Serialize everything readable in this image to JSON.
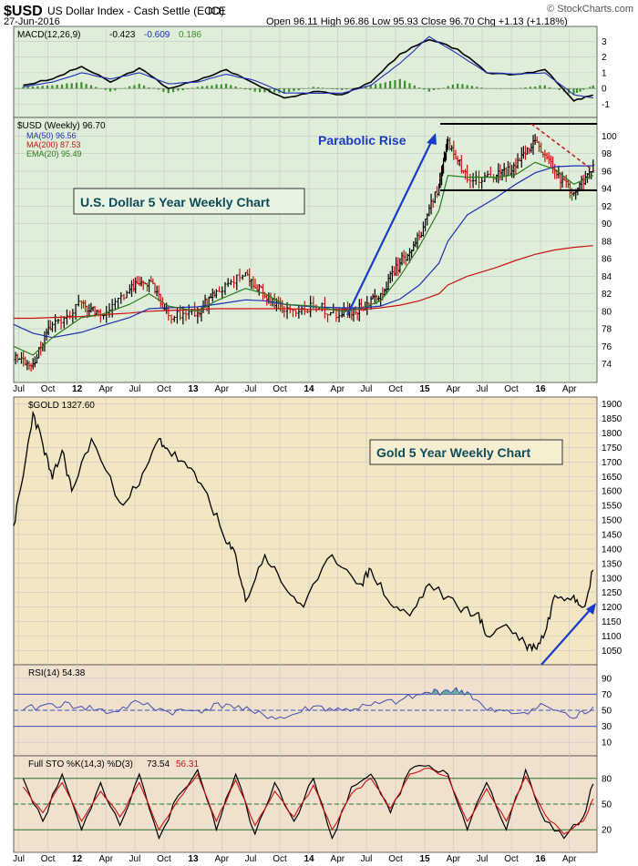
{
  "header": {
    "symbol": "$USD",
    "description": "US Dollar Index - Cash Settle (EOD)",
    "exchange": "ICE",
    "date": "27-Jun-2016",
    "quote": "Open 96.11  High 96.86  Low 95.93  Close 96.70  Chg +1.13 (+1.18%)",
    "watermark": "© StockCharts.com"
  },
  "colors": {
    "usd_bg": "#dfeed9",
    "gold_bg": "#f3e6c2",
    "osc_bg": "#f0e1cf",
    "macd_line": "#000000",
    "signal_line": "#1b2fb5",
    "histogram": "#3b8f2f",
    "ma50": "#1b2fb5",
    "ma200": "#cc1010",
    "ema20": "#2d7a1f",
    "bull_bar": "#000000",
    "bear_bar": "#cc1010",
    "annotation": "#1a3ac8",
    "rsi_line": "#4450b0",
    "rsi_fill": "#5aa59a",
    "sto_k": "#000000",
    "sto_d": "#cc1010"
  },
  "time_axis": {
    "labels": [
      "Jul",
      "Oct",
      "12",
      "Apr",
      "Jul",
      "Oct",
      "13",
      "Apr",
      "Jul",
      "Oct",
      "14",
      "Apr",
      "Jul",
      "Oct",
      "15",
      "Apr",
      "Jul",
      "Oct",
      "16",
      "Apr"
    ]
  },
  "chart_data": [
    {
      "type": "line",
      "panel": "macd",
      "legend": [
        "MACD(12,26,9)",
        "-0.423",
        "-0.609",
        "0.186"
      ],
      "x": [
        "2011-07",
        "2011-10",
        "2012-01",
        "2012-04",
        "2012-07",
        "2012-10",
        "2013-01",
        "2013-04",
        "2013-07",
        "2013-10",
        "2014-01",
        "2014-04",
        "2014-07",
        "2014-10",
        "2015-01",
        "2015-04",
        "2015-07",
        "2015-10",
        "2016-01",
        "2016-04",
        "2016-06"
      ],
      "series": [
        {
          "name": "MACD",
          "values": [
            0.2,
            0.6,
            1.4,
            0.4,
            1.3,
            0.0,
            0.5,
            1.2,
            0.3,
            -0.6,
            -0.2,
            -0.4,
            0.4,
            2.2,
            3.1,
            2.5,
            1.0,
            0.9,
            1.2,
            -0.8,
            -0.42
          ]
        },
        {
          "name": "Signal",
          "values": [
            0.1,
            0.4,
            1.0,
            0.6,
            1.0,
            0.3,
            0.4,
            0.9,
            0.5,
            -0.3,
            -0.3,
            -0.3,
            0.2,
            1.6,
            3.3,
            2.2,
            1.0,
            0.9,
            1.0,
            -0.4,
            -0.61
          ]
        }
      ],
      "ticks": [
        3,
        2,
        1,
        0,
        -1
      ],
      "ylim": [
        -1.5,
        3.6
      ]
    },
    {
      "type": "bar",
      "panel": "usd",
      "legend": [
        "$USD (Weekly) 96.70",
        "MA(50) 96.56",
        "MA(200) 87.53",
        "EMA(20) 95.49"
      ],
      "x": [
        "2011-06",
        "2011-08",
        "2011-10",
        "2012-01",
        "2012-03",
        "2012-06",
        "2012-08",
        "2012-10",
        "2013-01",
        "2013-03",
        "2013-06",
        "2013-08",
        "2013-10",
        "2014-01",
        "2014-04",
        "2014-06",
        "2014-08",
        "2014-10",
        "2014-12",
        "2015-02",
        "2015-03",
        "2015-05",
        "2015-08",
        "2015-10",
        "2015-12",
        "2016-02",
        "2016-04",
        "2016-06"
      ],
      "close": [
        74.5,
        74.0,
        78.5,
        81.0,
        79.5,
        82.5,
        83.5,
        79.5,
        79.8,
        82.3,
        84.4,
        81.7,
        80.0,
        80.6,
        79.6,
        80.4,
        82.0,
        85.5,
        88.5,
        94.5,
        99.5,
        95.0,
        95.5,
        96.5,
        99.5,
        96.0,
        93.5,
        96.7
      ],
      "ma50": [
        78.5,
        77.5,
        77.0,
        77.6,
        78.3,
        79.3,
        80.3,
        80.4,
        80.5,
        80.8,
        81.3,
        81.2,
        80.8,
        80.5,
        80.4,
        80.4,
        80.6,
        81.4,
        83.0,
        85.5,
        88.0,
        91.0,
        93.0,
        94.5,
        95.8,
        96.5,
        96.6,
        96.6
      ],
      "ma200": [
        79.2,
        79.2,
        79.3,
        79.4,
        79.6,
        79.8,
        80.0,
        80.1,
        80.2,
        80.3,
        80.3,
        80.3,
        80.3,
        80.2,
        80.2,
        80.2,
        80.4,
        80.7,
        81.2,
        82.0,
        83.0,
        84.0,
        85.0,
        85.8,
        86.5,
        87.0,
        87.3,
        87.5
      ],
      "ema20": [
        76.0,
        75.0,
        77.0,
        79.3,
        79.6,
        80.8,
        82.0,
        80.6,
        80.0,
        81.2,
        82.6,
        82.0,
        80.8,
        80.6,
        80.0,
        80.3,
        81.2,
        84.0,
        87.4,
        91.5,
        95.5,
        95.3,
        95.3,
        95.6,
        97.0,
        96.2,
        94.5,
        95.5
      ],
      "ticks": [
        100,
        98,
        96,
        94,
        92,
        90,
        88,
        86,
        84,
        82,
        80,
        78,
        76,
        74
      ],
      "ylim": [
        72.5,
        101.5
      ]
    },
    {
      "type": "line",
      "panel": "gold",
      "legend": [
        "$GOLD 1327.60"
      ],
      "x": [
        "2011-06",
        "2011-07",
        "2011-08",
        "2011-09",
        "2011-10",
        "2011-11",
        "2011-12",
        "2012-02",
        "2012-05",
        "2012-07",
        "2012-09",
        "2012-10",
        "2012-12",
        "2013-02",
        "2013-04",
        "2013-05",
        "2013-06",
        "2013-08",
        "2013-10",
        "2013-12",
        "2014-03",
        "2014-06",
        "2014-07",
        "2014-09",
        "2014-11",
        "2015-01",
        "2015-04",
        "2015-06",
        "2015-07",
        "2015-09",
        "2015-11",
        "2015-12",
        "2016-01",
        "2016-02",
        "2016-04",
        "2016-05",
        "2016-06"
      ],
      "values": [
        1480,
        1650,
        1870,
        1760,
        1640,
        1740,
        1600,
        1780,
        1560,
        1620,
        1780,
        1740,
        1680,
        1590,
        1420,
        1380,
        1220,
        1380,
        1270,
        1200,
        1380,
        1280,
        1330,
        1210,
        1170,
        1280,
        1200,
        1180,
        1100,
        1140,
        1070,
        1060,
        1110,
        1240,
        1240,
        1200,
        1327.6
      ],
      "ticks": [
        1900,
        1850,
        1800,
        1750,
        1700,
        1650,
        1600,
        1550,
        1500,
        1450,
        1400,
        1350,
        1300,
        1250,
        1200,
        1150,
        1100,
        1050
      ],
      "ylim": [
        1020,
        1905
      ]
    },
    {
      "type": "line",
      "panel": "rsi",
      "legend": [
        "RSI(14) 54.38"
      ],
      "x": [
        "2011-07",
        "2011-10",
        "2012-01",
        "2012-04",
        "2012-07",
        "2012-10",
        "2013-01",
        "2013-04",
        "2013-07",
        "2013-10",
        "2014-01",
        "2014-04",
        "2014-07",
        "2014-10",
        "2015-01",
        "2015-03",
        "2015-05",
        "2015-07",
        "2015-10",
        "2016-01",
        "2016-04",
        "2016-06"
      ],
      "values": [
        50,
        58,
        55,
        47,
        60,
        48,
        50,
        58,
        46,
        40,
        55,
        50,
        56,
        62,
        72,
        75,
        73,
        50,
        46,
        56,
        40,
        54.38
      ],
      "ticks": [
        90,
        70,
        50,
        30,
        10
      ],
      "levels": [
        70,
        50,
        30
      ],
      "ylim": [
        0,
        100
      ]
    },
    {
      "type": "line",
      "panel": "sto",
      "legend": [
        "Full STO %K(14,3) %D(3)",
        "73.54",
        "56.31"
      ],
      "x": [
        "2011-07",
        "2011-09",
        "2011-11",
        "2012-01",
        "2012-03",
        "2012-05",
        "2012-07",
        "2012-09",
        "2012-11",
        "2013-01",
        "2013-03",
        "2013-05",
        "2013-07",
        "2013-09",
        "2013-11",
        "2014-01",
        "2014-03",
        "2014-05",
        "2014-07",
        "2014-09",
        "2014-11",
        "2015-01",
        "2015-03",
        "2015-05",
        "2015-07",
        "2015-09",
        "2015-11",
        "2016-01",
        "2016-03",
        "2016-05",
        "2016-06"
      ],
      "k": [
        80,
        30,
        85,
        20,
        75,
        25,
        85,
        10,
        60,
        90,
        20,
        85,
        15,
        75,
        30,
        80,
        10,
        70,
        85,
        40,
        90,
        95,
        85,
        20,
        75,
        20,
        90,
        30,
        10,
        35,
        73.54
      ],
      "d": [
        70,
        40,
        75,
        30,
        65,
        35,
        75,
        20,
        55,
        85,
        30,
        78,
        25,
        65,
        35,
        72,
        20,
        62,
        80,
        45,
        85,
        92,
        82,
        30,
        68,
        30,
        82,
        38,
        15,
        30,
        56.31
      ],
      "ticks": [
        80,
        50,
        20
      ],
      "levels": [
        80,
        50,
        20
      ],
      "ylim": [
        0,
        100
      ]
    }
  ],
  "annotations": {
    "parabolic": "Parabolic Rise",
    "usd_box": "U.S. Dollar 5 Year Weekly Chart",
    "gold_box": "Gold 5 Year Weekly Chart"
  }
}
